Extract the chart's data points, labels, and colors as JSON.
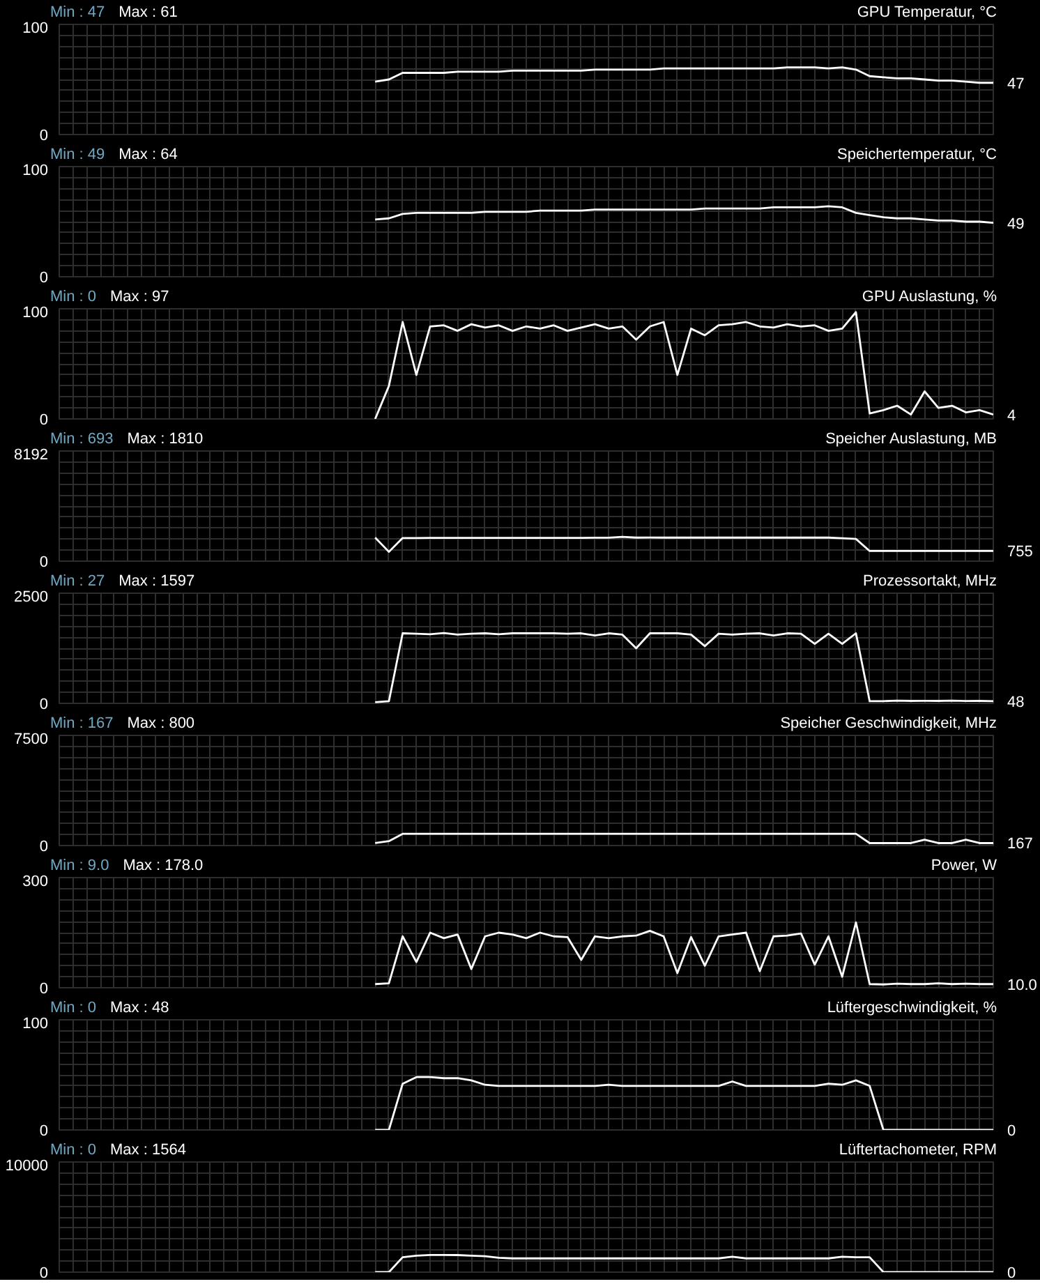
{
  "chart_data": [
    {
      "type": "line",
      "title": "GPU Temperatur, °C",
      "annotations": [
        "Min : 47",
        "Max : 61",
        "47"
      ],
      "categories": [
        null,
        null,
        null,
        null,
        null,
        null,
        null,
        null,
        null,
        null,
        null,
        null,
        null,
        null,
        null,
        null,
        null,
        null,
        null,
        null,
        null,
        null,
        null,
        null,
        null,
        null,
        null,
        null,
        null,
        null,
        null,
        null,
        null,
        null,
        null,
        null,
        null,
        null,
        null,
        null,
        null,
        null,
        null,
        null,
        null,
        null,
        null,
        null,
        null,
        null,
        null,
        null,
        null,
        null,
        null,
        null,
        null,
        null,
        null,
        null,
        null,
        null,
        null,
        null,
        null,
        null,
        null,
        null,
        null
      ],
      "ylim": [
        0,
        100
      ],
      "yticks": [
        0,
        {
          "value": 10,
          "label": null
        },
        {
          "value": 20,
          "label": null
        },
        {
          "value": 30,
          "label": null
        },
        {
          "value": 40,
          "label": null
        },
        {
          "value": 50,
          "label": null
        },
        {
          "value": 60,
          "label": null
        },
        {
          "value": 70,
          "label": null
        },
        {
          "value": 80,
          "label": null
        },
        {
          "value": 90,
          "label": null
        },
        100
      ],
      "grid": true,
      "tick_labels": "y",
      "series": [
        {
          "color": "#ffffff",
          "values": [
            null,
            null,
            null,
            null,
            null,
            null,
            null,
            null,
            null,
            null,
            null,
            null,
            null,
            null,
            null,
            null,
            null,
            null,
            null,
            null,
            null,
            null,
            null,
            48,
            50,
            56,
            56,
            56,
            56,
            57,
            57,
            57,
            57,
            58,
            58,
            58,
            58,
            58,
            58,
            59,
            59,
            59,
            59,
            59,
            60,
            60,
            60,
            60,
            60,
            60,
            60,
            60,
            60,
            61,
            61,
            61,
            60,
            61,
            59,
            53,
            52,
            51,
            51,
            50,
            49,
            49,
            48,
            47,
            47
          ]
        }
      ]
    },
    {
      "type": "line",
      "title": "Speichertemperatur, °C",
      "annotations": [
        "Min : 49",
        "Max : 64",
        "49"
      ],
      "categories": [
        null,
        null,
        null,
        null,
        null,
        null,
        null,
        null,
        null,
        null,
        null,
        null,
        null,
        null,
        null,
        null,
        null,
        null,
        null,
        null,
        null,
        null,
        null,
        null,
        null,
        null,
        null,
        null,
        null,
        null,
        null,
        null,
        null,
        null,
        null,
        null,
        null,
        null,
        null,
        null,
        null,
        null,
        null,
        null,
        null,
        null,
        null,
        null,
        null,
        null,
        null,
        null,
        null,
        null,
        null,
        null,
        null,
        null,
        null,
        null,
        null,
        null,
        null,
        null,
        null,
        null,
        null,
        null,
        null
      ],
      "ylim": [
        0,
        100
      ],
      "yticks": [
        0,
        {
          "value": 10,
          "label": null
        },
        {
          "value": 20,
          "label": null
        },
        {
          "value": 30,
          "label": null
        },
        {
          "value": 40,
          "label": null
        },
        {
          "value": 50,
          "label": null
        },
        {
          "value": 60,
          "label": null
        },
        {
          "value": 70,
          "label": null
        },
        {
          "value": 80,
          "label": null
        },
        {
          "value": 90,
          "label": null
        },
        100
      ],
      "grid": true,
      "tick_labels": "y",
      "series": [
        {
          "color": "#ffffff",
          "values": [
            null,
            null,
            null,
            null,
            null,
            null,
            null,
            null,
            null,
            null,
            null,
            null,
            null,
            null,
            null,
            null,
            null,
            null,
            null,
            null,
            null,
            null,
            null,
            52,
            53,
            57,
            58,
            58,
            58,
            58,
            58,
            59,
            59,
            59,
            59,
            60,
            60,
            60,
            60,
            61,
            61,
            61,
            61,
            61,
            61,
            61,
            61,
            62,
            62,
            62,
            62,
            62,
            63,
            63,
            63,
            63,
            64,
            63,
            58,
            56,
            54,
            53,
            53,
            52,
            51,
            51,
            50,
            50,
            49
          ]
        }
      ]
    },
    {
      "type": "line",
      "title": "GPU Auslastung, %",
      "annotations": [
        "Min : 0",
        "Max : 97",
        "4"
      ],
      "categories": [
        null,
        null,
        null,
        null,
        null,
        null,
        null,
        null,
        null,
        null,
        null,
        null,
        null,
        null,
        null,
        null,
        null,
        null,
        null,
        null,
        null,
        null,
        null,
        null,
        null,
        null,
        null,
        null,
        null,
        null,
        null,
        null,
        null,
        null,
        null,
        null,
        null,
        null,
        null,
        null,
        null,
        null,
        null,
        null,
        null,
        null,
        null,
        null,
        null,
        null,
        null,
        null,
        null,
        null,
        null,
        null,
        null,
        null,
        null,
        null,
        null,
        null,
        null,
        null,
        null,
        null,
        null,
        null,
        null
      ],
      "ylim": [
        0,
        100
      ],
      "yticks": [
        0,
        {
          "value": 10,
          "label": null
        },
        {
          "value": 20,
          "label": null
        },
        {
          "value": 30,
          "label": null
        },
        {
          "value": 40,
          "label": null
        },
        {
          "value": 50,
          "label": null
        },
        {
          "value": 60,
          "label": null
        },
        {
          "value": 70,
          "label": null
        },
        {
          "value": 80,
          "label": null
        },
        {
          "value": 90,
          "label": null
        },
        100
      ],
      "grid": true,
      "tick_labels": "y",
      "series": [
        {
          "color": "#ffffff",
          "values": [
            null,
            null,
            null,
            null,
            null,
            null,
            null,
            null,
            null,
            null,
            null,
            null,
            null,
            null,
            null,
            null,
            null,
            null,
            null,
            null,
            null,
            null,
            null,
            0,
            30,
            88,
            40,
            84,
            85,
            80,
            86,
            83,
            85,
            80,
            84,
            82,
            85,
            80,
            83,
            86,
            82,
            84,
            72,
            84,
            88,
            40,
            82,
            76,
            85,
            86,
            88,
            84,
            83,
            86,
            84,
            85,
            80,
            82,
            97,
            5,
            8,
            12,
            4,
            25,
            10,
            12,
            6,
            8,
            4
          ]
        }
      ]
    },
    {
      "type": "line",
      "title": "Speicher Auslastung, MB",
      "annotations": [
        "Min : 693",
        "Max : 1810",
        "755"
      ],
      "categories": [
        null,
        null,
        null,
        null,
        null,
        null,
        null,
        null,
        null,
        null,
        null,
        null,
        null,
        null,
        null,
        null,
        null,
        null,
        null,
        null,
        null,
        null,
        null,
        null,
        null,
        null,
        null,
        null,
        null,
        null,
        null,
        null,
        null,
        null,
        null,
        null,
        null,
        null,
        null,
        null,
        null,
        null,
        null,
        null,
        null,
        null,
        null,
        null,
        null,
        null,
        null,
        null,
        null,
        null,
        null,
        null,
        null,
        null,
        null,
        null,
        null,
        null,
        null,
        null,
        null,
        null,
        null,
        null,
        null
      ],
      "ylim": [
        0,
        8192
      ],
      "yticks": [
        0,
        {
          "value": 819.2,
          "label": null
        },
        {
          "value": 1638.4,
          "label": null
        },
        {
          "value": 2457.6,
          "label": null
        },
        {
          "value": 3276.8,
          "label": null
        },
        {
          "value": 4096,
          "label": null
        },
        {
          "value": 4915.2,
          "label": null
        },
        {
          "value": 5734.4,
          "label": null
        },
        {
          "value": 6553.6,
          "label": null
        },
        {
          "value": 7372.8,
          "label": null
        },
        8192
      ],
      "grid": true,
      "tick_labels": "y",
      "series": [
        {
          "color": "#ffffff",
          "values": [
            null,
            null,
            null,
            null,
            null,
            null,
            null,
            null,
            null,
            null,
            null,
            null,
            null,
            null,
            null,
            null,
            null,
            null,
            null,
            null,
            null,
            null,
            null,
            1750,
            693,
            1720,
            1720,
            1730,
            1730,
            1730,
            1730,
            1730,
            1730,
            1730,
            1730,
            1730,
            1730,
            1730,
            1730,
            1740,
            1740,
            1810,
            1750,
            1760,
            1750,
            1750,
            1750,
            1750,
            1750,
            1750,
            1750,
            1750,
            1750,
            1750,
            1750,
            1750,
            1750,
            1700,
            1650,
            755,
            755,
            755,
            755,
            755,
            760,
            760,
            755,
            755,
            755
          ]
        }
      ]
    },
    {
      "type": "line",
      "title": "Prozessortakt, MHz",
      "annotations": [
        "Min : 27",
        "Max : 1597",
        "48"
      ],
      "categories": [
        null,
        null,
        null,
        null,
        null,
        null,
        null,
        null,
        null,
        null,
        null,
        null,
        null,
        null,
        null,
        null,
        null,
        null,
        null,
        null,
        null,
        null,
        null,
        null,
        null,
        null,
        null,
        null,
        null,
        null,
        null,
        null,
        null,
        null,
        null,
        null,
        null,
        null,
        null,
        null,
        null,
        null,
        null,
        null,
        null,
        null,
        null,
        null,
        null,
        null,
        null,
        null,
        null,
        null,
        null,
        null,
        null,
        null,
        null,
        null,
        null,
        null,
        null,
        null,
        null,
        null,
        null,
        null,
        null
      ],
      "ylim": [
        0,
        2500
      ],
      "yticks": [
        0,
        {
          "value": 250,
          "label": null
        },
        {
          "value": 500,
          "label": null
        },
        {
          "value": 750,
          "label": null
        },
        {
          "value": 1000,
          "label": null
        },
        {
          "value": 1250,
          "label": null
        },
        {
          "value": 1500,
          "label": null
        },
        {
          "value": 1750,
          "label": null
        },
        {
          "value": 2000,
          "label": null
        },
        {
          "value": 2250,
          "label": null
        },
        2500
      ],
      "grid": true,
      "tick_labels": "y",
      "series": [
        {
          "color": "#ffffff",
          "values": [
            null,
            null,
            null,
            null,
            null,
            null,
            null,
            null,
            null,
            null,
            null,
            null,
            null,
            null,
            null,
            null,
            null,
            null,
            null,
            null,
            null,
            null,
            null,
            27,
            48,
            1590,
            1580,
            1570,
            1597,
            1560,
            1580,
            1590,
            1570,
            1590,
            1590,
            1590,
            1590,
            1580,
            1590,
            1540,
            1590,
            1560,
            1250,
            1590,
            1590,
            1590,
            1560,
            1300,
            1580,
            1560,
            1580,
            1590,
            1540,
            1590,
            1580,
            1350,
            1580,
            1350,
            1590,
            48,
            50,
            60,
            55,
            58,
            55,
            60,
            52,
            55,
            48
          ]
        }
      ]
    },
    {
      "type": "line",
      "title": "Speicher Geschwindigkeit, MHz",
      "annotations": [
        "Min : 167",
        "Max : 800",
        "167"
      ],
      "categories": [
        null,
        null,
        null,
        null,
        null,
        null,
        null,
        null,
        null,
        null,
        null,
        null,
        null,
        null,
        null,
        null,
        null,
        null,
        null,
        null,
        null,
        null,
        null,
        null,
        null,
        null,
        null,
        null,
        null,
        null,
        null,
        null,
        null,
        null,
        null,
        null,
        null,
        null,
        null,
        null,
        null,
        null,
        null,
        null,
        null,
        null,
        null,
        null,
        null,
        null,
        null,
        null,
        null,
        null,
        null,
        null,
        null,
        null,
        null,
        null,
        null,
        null,
        null,
        null,
        null,
        null,
        null,
        null,
        null
      ],
      "ylim": [
        0,
        7500
      ],
      "yticks": [
        0,
        {
          "value": 750,
          "label": null
        },
        {
          "value": 1500,
          "label": null
        },
        {
          "value": 2250,
          "label": null
        },
        {
          "value": 3000,
          "label": null
        },
        {
          "value": 3750,
          "label": null
        },
        {
          "value": 4500,
          "label": null
        },
        {
          "value": 5250,
          "label": null
        },
        {
          "value": 6000,
          "label": null
        },
        {
          "value": 6750,
          "label": null
        },
        7500
      ],
      "grid": true,
      "tick_labels": "y",
      "series": [
        {
          "color": "#ffffff",
          "values": [
            null,
            null,
            null,
            null,
            null,
            null,
            null,
            null,
            null,
            null,
            null,
            null,
            null,
            null,
            null,
            null,
            null,
            null,
            null,
            null,
            null,
            null,
            null,
            167,
            300,
            800,
            800,
            800,
            800,
            800,
            800,
            800,
            800,
            800,
            800,
            800,
            800,
            800,
            800,
            800,
            800,
            800,
            800,
            800,
            800,
            800,
            800,
            800,
            800,
            800,
            800,
            800,
            800,
            800,
            800,
            800,
            800,
            800,
            800,
            167,
            167,
            167,
            167,
            400,
            167,
            167,
            400,
            167,
            167
          ]
        }
      ]
    },
    {
      "type": "line",
      "title": "Power, W",
      "annotations": [
        "Min : 9.0",
        "Max : 178.0",
        "10.0"
      ],
      "categories": [
        null,
        null,
        null,
        null,
        null,
        null,
        null,
        null,
        null,
        null,
        null,
        null,
        null,
        null,
        null,
        null,
        null,
        null,
        null,
        null,
        null,
        null,
        null,
        null,
        null,
        null,
        null,
        null,
        null,
        null,
        null,
        null,
        null,
        null,
        null,
        null,
        null,
        null,
        null,
        null,
        null,
        null,
        null,
        null,
        null,
        null,
        null,
        null,
        null,
        null,
        null,
        null,
        null,
        null,
        null,
        null,
        null,
        null,
        null,
        null,
        null,
        null,
        null,
        null,
        null,
        null,
        null,
        null,
        null
      ],
      "ylim": [
        0,
        300
      ],
      "yticks": [
        0,
        {
          "value": 30,
          "label": null
        },
        {
          "value": 60,
          "label": null
        },
        {
          "value": 90,
          "label": null
        },
        {
          "value": 120,
          "label": null
        },
        {
          "value": 150,
          "label": null
        },
        {
          "value": 180,
          "label": null
        },
        {
          "value": 210,
          "label": null
        },
        {
          "value": 240,
          "label": null
        },
        {
          "value": 270,
          "label": null
        },
        300
      ],
      "grid": true,
      "tick_labels": "y",
      "series": [
        {
          "color": "#ffffff",
          "values": [
            null,
            null,
            null,
            null,
            null,
            null,
            null,
            null,
            null,
            null,
            null,
            null,
            null,
            null,
            null,
            null,
            null,
            null,
            null,
            null,
            null,
            null,
            null,
            10,
            12,
            140,
            70,
            150,
            135,
            145,
            51,
            140,
            150,
            145,
            135,
            150,
            140,
            138,
            76,
            140,
            135,
            140,
            142,
            155,
            140,
            40,
            138,
            60,
            140,
            145,
            150,
            45,
            140,
            142,
            148,
            63,
            140,
            30,
            178,
            10,
            9,
            11,
            10,
            10,
            12,
            10,
            11,
            10,
            10
          ]
        }
      ]
    },
    {
      "type": "line",
      "title": "Lüftergeschwindigkeit, %",
      "annotations": [
        "Min : 0",
        "Max : 48",
        "0"
      ],
      "categories": [
        null,
        null,
        null,
        null,
        null,
        null,
        null,
        null,
        null,
        null,
        null,
        null,
        null,
        null,
        null,
        null,
        null,
        null,
        null,
        null,
        null,
        null,
        null,
        null,
        null,
        null,
        null,
        null,
        null,
        null,
        null,
        null,
        null,
        null,
        null,
        null,
        null,
        null,
        null,
        null,
        null,
        null,
        null,
        null,
        null,
        null,
        null,
        null,
        null,
        null,
        null,
        null,
        null,
        null,
        null,
        null,
        null,
        null,
        null,
        null,
        null,
        null,
        null,
        null,
        null,
        null,
        null,
        null,
        null
      ],
      "ylim": [
        0,
        100
      ],
      "yticks": [
        0,
        {
          "value": 10,
          "label": null
        },
        {
          "value": 20,
          "label": null
        },
        {
          "value": 30,
          "label": null
        },
        {
          "value": 40,
          "label": null
        },
        {
          "value": 50,
          "label": null
        },
        {
          "value": 60,
          "label": null
        },
        {
          "value": 70,
          "label": null
        },
        {
          "value": 80,
          "label": null
        },
        {
          "value": 90,
          "label": null
        },
        100
      ],
      "grid": true,
      "tick_labels": "y",
      "series": [
        {
          "color": "#ffffff",
          "values": [
            null,
            null,
            null,
            null,
            null,
            null,
            null,
            null,
            null,
            null,
            null,
            null,
            null,
            null,
            null,
            null,
            null,
            null,
            null,
            null,
            null,
            null,
            null,
            0,
            0,
            42,
            48,
            48,
            47,
            47,
            45,
            41,
            40,
            40,
            40,
            40,
            40,
            40,
            40,
            40,
            41,
            40,
            40,
            40,
            40,
            40,
            40,
            40,
            40,
            44,
            40,
            40,
            40,
            40,
            40,
            40,
            42,
            41,
            45,
            40,
            0,
            0,
            0,
            0,
            0,
            0,
            0,
            0,
            0
          ]
        }
      ]
    },
    {
      "type": "line",
      "title": "Lüftertachometer, RPM",
      "annotations": [
        "Min : 0",
        "Max : 1564",
        "0"
      ],
      "categories": [
        null,
        null,
        null,
        null,
        null,
        null,
        null,
        null,
        null,
        null,
        null,
        null,
        null,
        null,
        null,
        null,
        null,
        null,
        null,
        null,
        null,
        null,
        null,
        null,
        null,
        null,
        null,
        null,
        null,
        null,
        null,
        null,
        null,
        null,
        null,
        null,
        null,
        null,
        null,
        null,
        null,
        null,
        null,
        null,
        null,
        null,
        null,
        null,
        null,
        null,
        null,
        null,
        null,
        null,
        null,
        null,
        null,
        null,
        null,
        null,
        null,
        null,
        null,
        null,
        null,
        null,
        null,
        null,
        null
      ],
      "ylim": [
        0,
        10000
      ],
      "yticks": [
        0,
        {
          "value": 1000,
          "label": null
        },
        {
          "value": 2000,
          "label": null
        },
        {
          "value": 3000,
          "label": null
        },
        {
          "value": 4000,
          "label": null
        },
        {
          "value": 5000,
          "label": null
        },
        {
          "value": 6000,
          "label": null
        },
        {
          "value": 7000,
          "label": null
        },
        {
          "value": 8000,
          "label": null
        },
        {
          "value": 9000,
          "label": null
        },
        10000
      ],
      "grid": true,
      "tick_labels": "y",
      "series": [
        {
          "color": "#ffffff",
          "values": [
            null,
            null,
            null,
            null,
            null,
            null,
            null,
            null,
            null,
            null,
            null,
            null,
            null,
            null,
            null,
            null,
            null,
            null,
            null,
            null,
            null,
            null,
            null,
            0,
            0,
            1350,
            1500,
            1564,
            1564,
            1550,
            1500,
            1450,
            1300,
            1250,
            1250,
            1250,
            1250,
            1250,
            1250,
            1250,
            1250,
            1250,
            1250,
            1250,
            1250,
            1250,
            1250,
            1250,
            1250,
            1400,
            1250,
            1250,
            1250,
            1250,
            1250,
            1250,
            1250,
            1400,
            1350,
            1350,
            0,
            0,
            0,
            0,
            0,
            0,
            0,
            0,
            0
          ]
        }
      ]
    }
  ]
}
